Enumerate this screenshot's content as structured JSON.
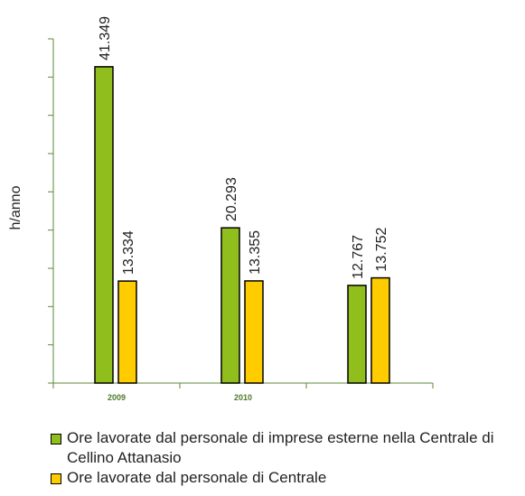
{
  "chart_data": {
    "type": "bar",
    "title": "",
    "xlabel": "",
    "ylabel": "h/anno",
    "categories": [
      "2009",
      "2010",
      ""
    ],
    "series": [
      {
        "name": "Ore lavorate dal personale di imprese esterne nella Centrale di Cellino Attanasio",
        "color": "#8fbe1d",
        "values": [
          41349,
          20293,
          12767
        ],
        "labels": [
          "41.349",
          "20.293",
          "12.767"
        ]
      },
      {
        "name": "Ore lavorate dal personale di Centrale",
        "color": "#ffcc00",
        "values": [
          13334,
          13355,
          13752
        ],
        "labels": [
          "13.334",
          "13.355",
          "13.752"
        ]
      }
    ],
    "ylim": [
      0,
      45000
    ],
    "legend_position": "bottom",
    "grid": false
  }
}
